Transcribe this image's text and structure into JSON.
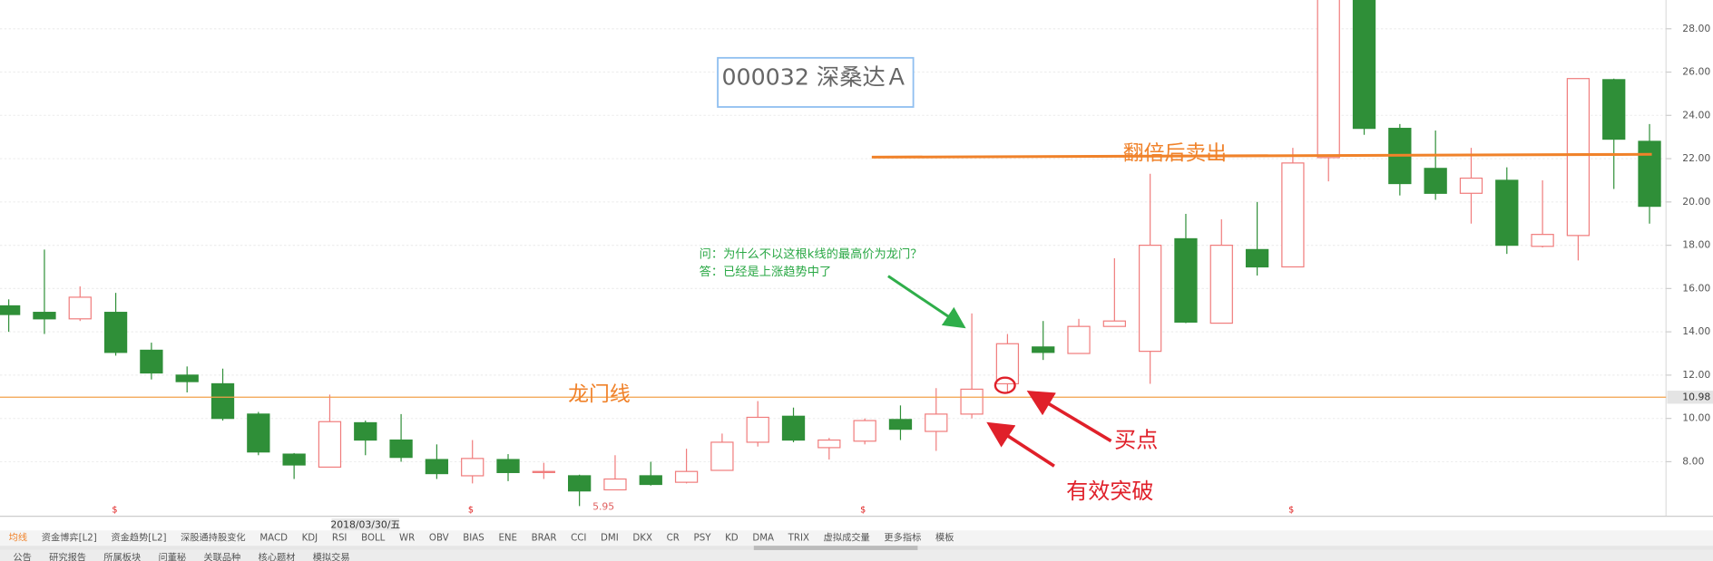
{
  "chart_data": {
    "type": "candlestick",
    "title": "000032 深桑达Ａ",
    "categories": [
      null,
      null,
      null,
      null,
      null,
      null,
      null,
      null,
      null,
      null,
      "2018/03/30/五",
      null,
      null,
      null,
      null,
      null,
      null,
      null,
      null,
      null,
      null,
      null,
      null,
      null,
      null,
      null,
      null,
      null,
      null,
      null,
      null,
      null,
      null,
      null,
      null,
      null,
      null,
      null,
      null,
      null,
      null,
      null,
      null,
      null,
      null,
      null,
      null
    ],
    "open": [
      15.2,
      14.9,
      14.6,
      14.9,
      13.15,
      12.0,
      11.6,
      10.2,
      8.35,
      7.75,
      9.8,
      9.0,
      8.1,
      7.35,
      8.1,
      7.55,
      7.35,
      6.7,
      7.35,
      7.05,
      7.6,
      8.9,
      10.1,
      8.65,
      8.95,
      9.95,
      9.4,
      10.2,
      11.6,
      13.3,
      13.0,
      14.25,
      13.1,
      18.3,
      14.4,
      17.8,
      17.0,
      22.05,
      30.5,
      23.4,
      21.55,
      20.4,
      21.0,
      17.95,
      18.45,
      25.65,
      22.8
    ],
    "high": [
      15.5,
      17.8,
      16.1,
      15.8,
      13.5,
      12.4,
      12.3,
      10.3,
      8.4,
      11.1,
      9.9,
      10.2,
      8.8,
      9.0,
      8.35,
      7.95,
      7.4,
      8.3,
      8.0,
      8.6,
      9.3,
      10.8,
      10.5,
      9.1,
      10.0,
      10.6,
      11.4,
      14.85,
      13.9,
      14.5,
      14.6,
      17.4,
      21.3,
      19.45,
      19.2,
      20.0,
      22.5,
      31.0,
      31.0,
      23.6,
      23.3,
      22.5,
      21.6,
      21.0,
      25.7,
      25.7,
      23.6
    ],
    "low": [
      14.0,
      13.9,
      14.5,
      12.9,
      11.8,
      11.2,
      9.9,
      8.3,
      7.2,
      7.75,
      8.3,
      8.0,
      7.2,
      7.0,
      7.1,
      7.2,
      5.95,
      6.7,
      6.9,
      7.0,
      7.6,
      8.7,
      8.9,
      8.1,
      8.8,
      9.0,
      8.5,
      10.0,
      11.2,
      12.7,
      13.0,
      14.25,
      11.6,
      14.4,
      14.4,
      16.6,
      17.0,
      20.95,
      23.1,
      20.3,
      20.1,
      19.0,
      17.6,
      17.9,
      17.3,
      20.6,
      19.0
    ],
    "close": [
      14.8,
      14.6,
      15.6,
      13.05,
      12.1,
      11.7,
      10.0,
      8.45,
      7.85,
      9.85,
      9.0,
      8.2,
      7.45,
      8.15,
      7.5,
      7.55,
      6.65,
      7.2,
      6.95,
      7.55,
      8.9,
      10.05,
      9.0,
      9.0,
      9.9,
      9.5,
      10.2,
      11.35,
      13.45,
      13.05,
      14.25,
      14.5,
      18.0,
      14.45,
      18.0,
      17.0,
      21.8,
      30.5,
      23.4,
      20.85,
      20.4,
      21.1,
      18.0,
      18.5,
      25.7,
      22.9,
      19.8
    ],
    "up_color": "#f07c7c",
    "down_color": "#2f8f38",
    "ylim": [
      5.48,
      29.33
    ],
    "yticks": [
      {
        "value": 8,
        "label": "8.00"
      },
      {
        "value": 10,
        "label": "10.00"
      },
      {
        "value": 12,
        "label": "12.00"
      },
      {
        "value": 14,
        "label": "14.00"
      },
      {
        "value": 16,
        "label": "16.00"
      },
      {
        "value": 18,
        "label": "18.00"
      },
      {
        "value": 20,
        "label": "20.00"
      },
      {
        "value": 22,
        "label": "22.00"
      },
      {
        "value": 24,
        "label": "24.00"
      },
      {
        "value": 26,
        "label": "26.00"
      },
      {
        "value": 28,
        "label": "28.00"
      }
    ],
    "grid": true,
    "dragon_line": {
      "value": 10.98,
      "label": "10.98",
      "text": "龙门线"
    },
    "sell_line": {
      "values": [
        22.07,
        22.2
      ],
      "text": "翻倍后卖出"
    },
    "question": "问：为什么不以这根k线的最高价为龙门？",
    "answer": "答：已经是上涨趋势中了",
    "buy_point": "买点",
    "breakout": "有效突破",
    "markers": [
      "$",
      "$",
      "$",
      "$"
    ]
  },
  "toolbar": [
    "均线",
    "资金博弈[L2]",
    "资金趋势[L2]",
    "深股通持股变化",
    "MACD",
    "KDJ",
    "RSI",
    "BOLL",
    "WR",
    "OBV",
    "BIAS",
    "ENE",
    "BRAR",
    "CCI",
    "DMI",
    "DKX",
    "CR",
    "PSY",
    "KD",
    "DMA",
    "TRIX",
    "虚拟成交量",
    "更多指标",
    "模板"
  ],
  "tabs": [
    "公告",
    "研究报告",
    "所属板块",
    "问董秘",
    "关联品种",
    "核心题材",
    "模拟交易"
  ]
}
